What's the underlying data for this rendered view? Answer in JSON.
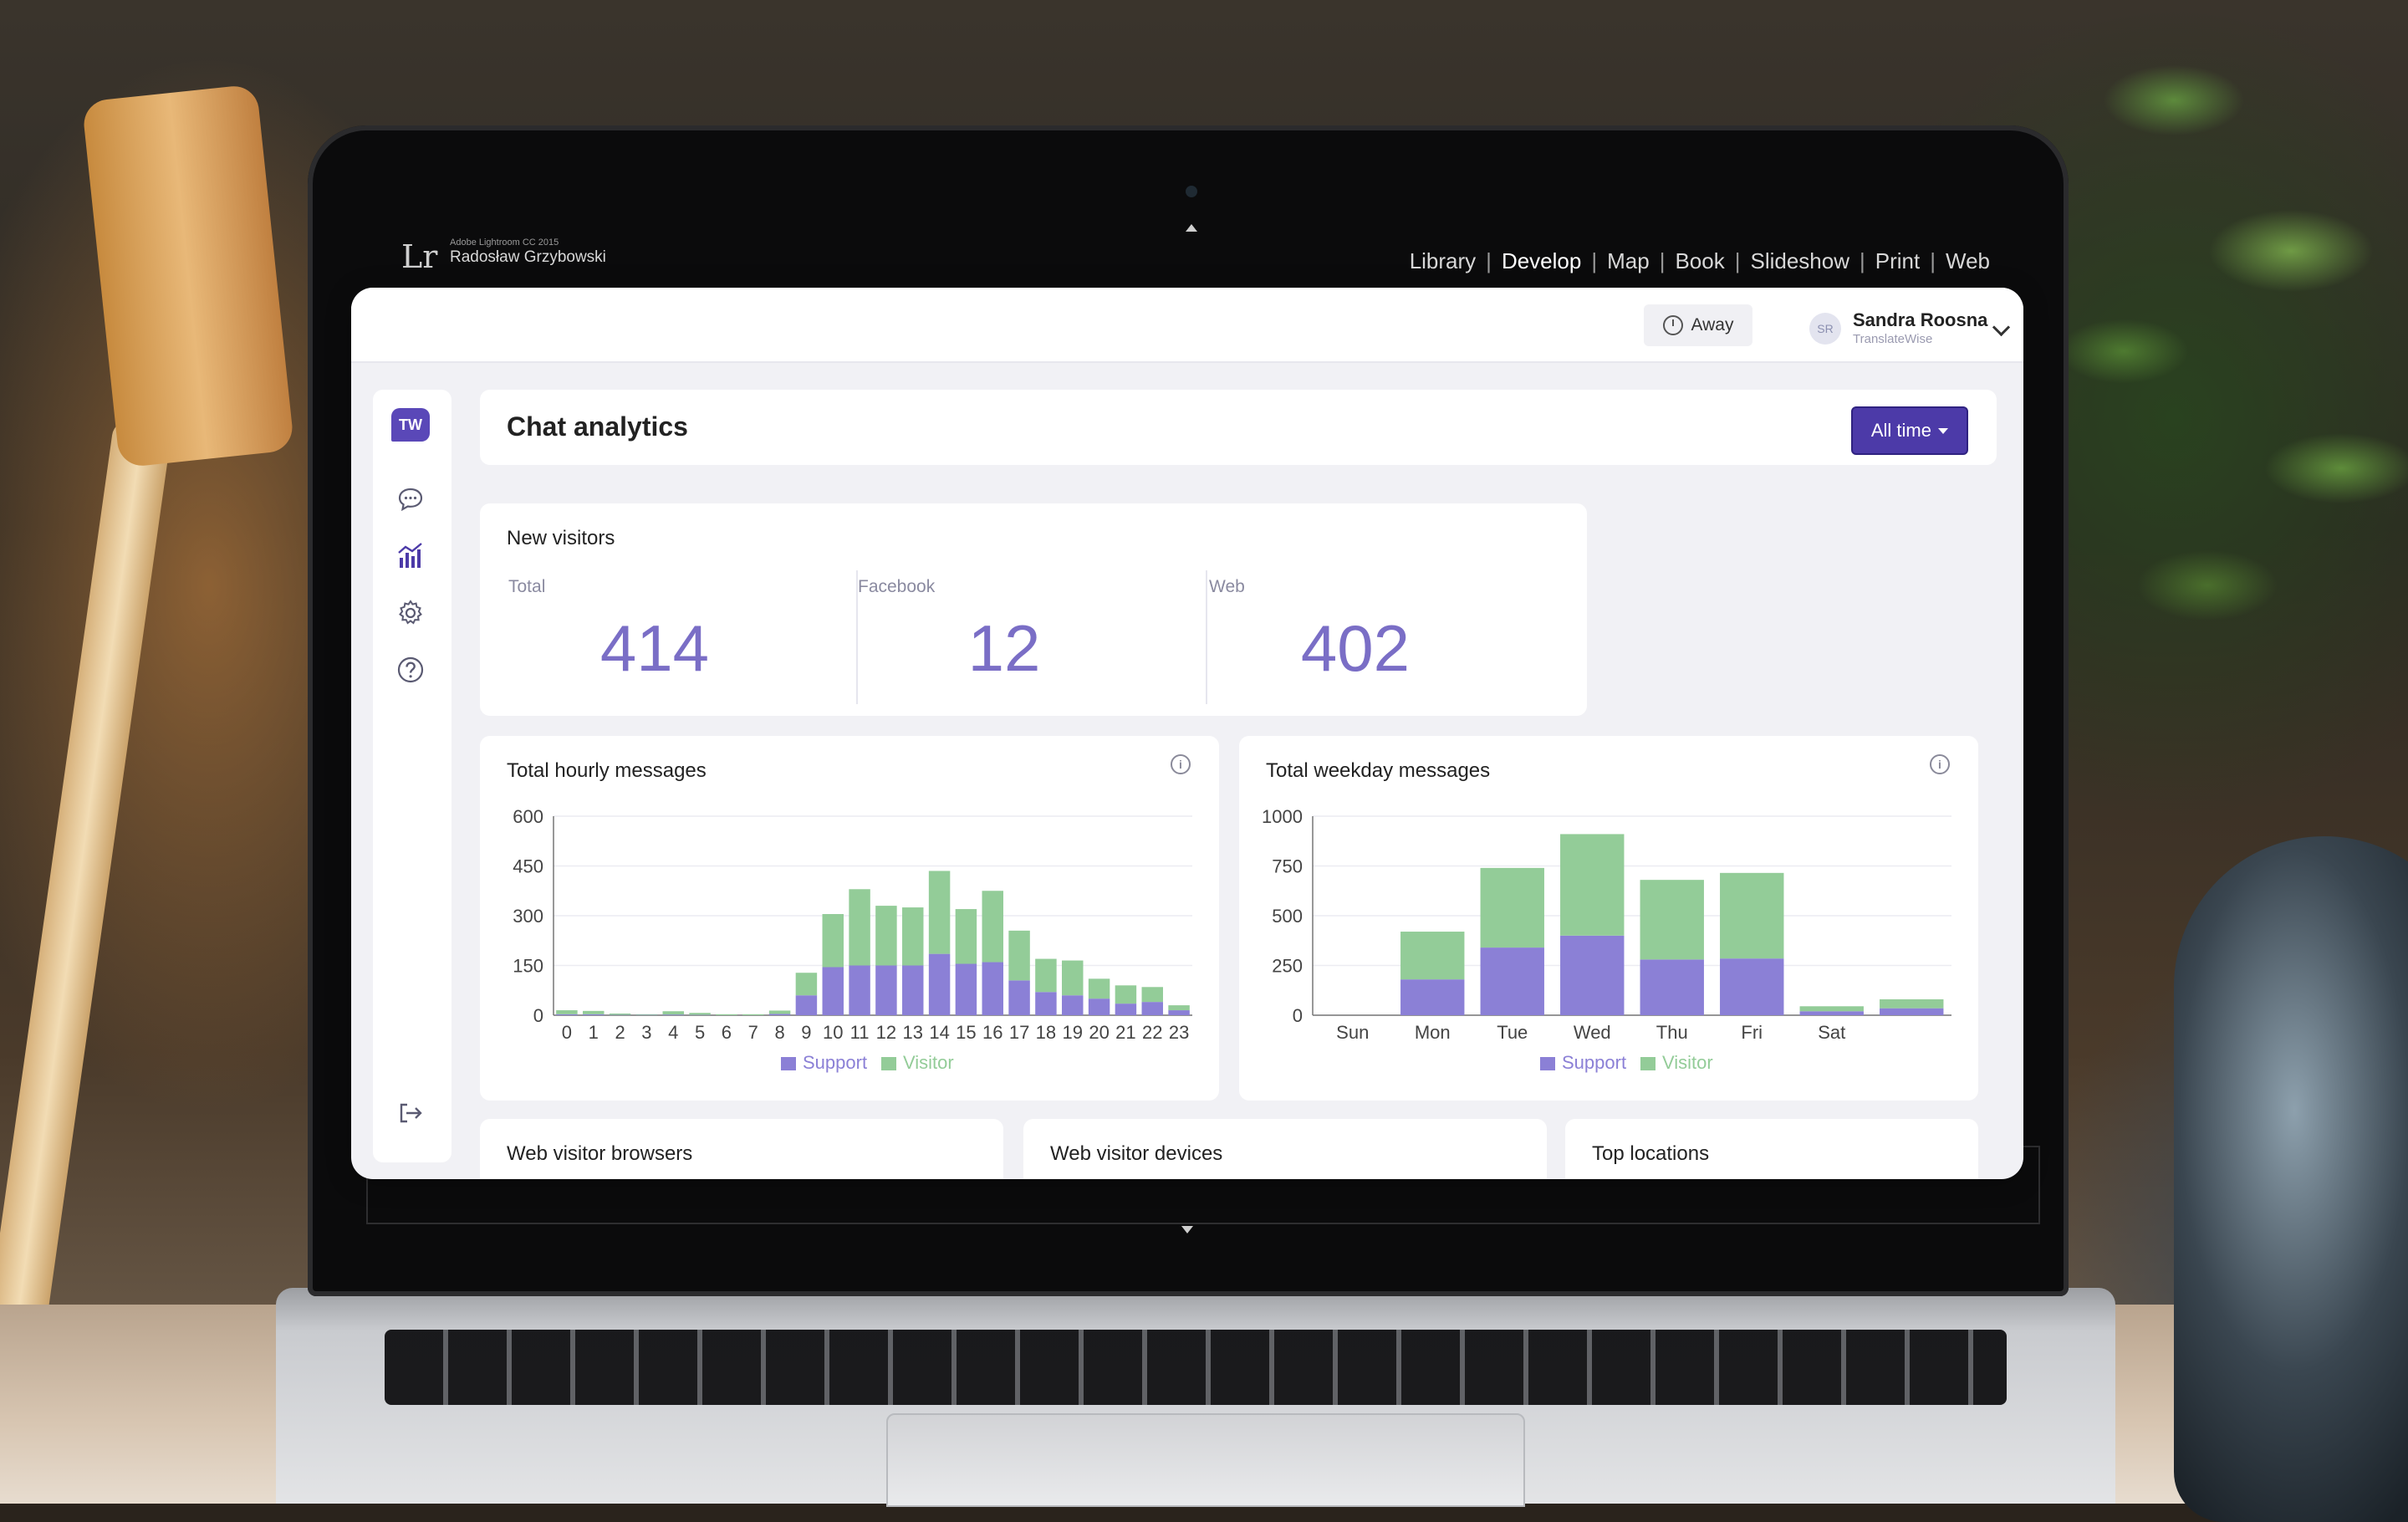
{
  "lightroom": {
    "logo": "Lr",
    "product": "Adobe Lightroom CC 2015",
    "user": "Radosław Grzybowski",
    "modules": [
      "Library",
      "Develop",
      "Map",
      "Book",
      "Slideshow",
      "Print",
      "Web"
    ],
    "active_module": "Develop"
  },
  "topbar": {
    "status_label": "Away",
    "user_initials": "SR",
    "user_name": "Sandra Roosna",
    "user_org": "TranslateWise"
  },
  "sidebar": {
    "logo_text": "TW",
    "items": [
      {
        "icon": "chat-bubble-icon",
        "active": false
      },
      {
        "icon": "analytics-icon",
        "active": true
      },
      {
        "icon": "gear-icon",
        "active": false
      },
      {
        "icon": "help-icon",
        "active": false
      }
    ],
    "logout_icon": "logout-icon"
  },
  "page": {
    "title": "Chat analytics",
    "range_button": "All time"
  },
  "new_visitors": {
    "title": "New visitors",
    "stats": [
      {
        "label": "Total",
        "value": "414"
      },
      {
        "label": "Facebook",
        "value": "12"
      },
      {
        "label": "Web",
        "value": "402"
      }
    ]
  },
  "bottom_cards": {
    "browsers": "Web visitor browsers",
    "devices": "Web visitor devices",
    "locations": "Top locations"
  },
  "colors": {
    "support": "#8b80d6",
    "visitor": "#93cc98",
    "accent": "#4c3aa8",
    "stat_value": "#7a6ec6"
  },
  "chart_data": [
    {
      "type": "bar",
      "stacked": true,
      "title": "Total hourly messages",
      "categories": [
        "0",
        "1",
        "2",
        "3",
        "4",
        "5",
        "6",
        "7",
        "8",
        "9",
        "10",
        "11",
        "12",
        "13",
        "14",
        "15",
        "16",
        "17",
        "18",
        "19",
        "20",
        "21",
        "22",
        "23"
      ],
      "series": [
        {
          "name": "Support",
          "values": [
            3,
            3,
            1,
            1,
            2,
            1,
            0,
            0,
            4,
            60,
            145,
            150,
            150,
            150,
            185,
            155,
            160,
            105,
            70,
            60,
            50,
            35,
            40,
            15
          ]
        },
        {
          "name": "Visitor",
          "values": [
            12,
            10,
            4,
            2,
            10,
            6,
            3,
            3,
            10,
            68,
            160,
            230,
            180,
            175,
            250,
            165,
            215,
            150,
            100,
            105,
            60,
            55,
            45,
            15
          ]
        }
      ],
      "ylim": [
        0,
        600
      ],
      "yticks": [
        0,
        150,
        300,
        450,
        600
      ],
      "legend": "bottom",
      "grid": true
    },
    {
      "type": "bar",
      "stacked": true,
      "title": "Total weekday messages",
      "categories": [
        "Sun",
        "Mon",
        "Tue",
        "Wed",
        "Thu",
        "Fri",
        "Sat",
        ""
      ],
      "series": [
        {
          "name": "Support",
          "values": [
            0,
            180,
            340,
            400,
            280,
            285,
            20,
            35
          ]
        },
        {
          "name": "Visitor",
          "values": [
            0,
            240,
            400,
            510,
            400,
            430,
            25,
            45
          ]
        }
      ],
      "ylim": [
        0,
        1000
      ],
      "yticks": [
        0,
        250,
        500,
        750,
        1000
      ],
      "ytick_labels": [
        "0",
        "250",
        "500",
        "750",
        "1000"
      ],
      "legend": "bottom",
      "grid": true
    }
  ]
}
